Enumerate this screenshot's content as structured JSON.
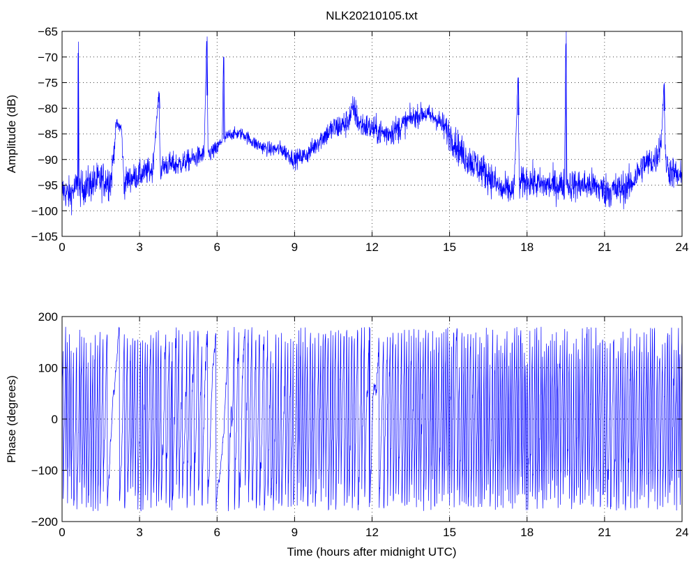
{
  "chart_data": [
    {
      "type": "line",
      "title": "NLK20210105.txt",
      "xlabel": "",
      "ylabel": "Amplitude (dB)",
      "xlim": [
        0,
        24
      ],
      "ylim": [
        -105,
        -65
      ],
      "xticks": [
        0,
        3,
        6,
        9,
        12,
        15,
        18,
        21,
        24
      ],
      "yticks": [
        -105,
        -100,
        -95,
        -90,
        -85,
        -80,
        -75,
        -70,
        -65
      ],
      "grid": true,
      "line_color": "#0000ff",
      "x": [
        0,
        0.3,
        0.6,
        0.62,
        0.65,
        1.0,
        1.5,
        1.9,
        2.05,
        2.1,
        2.3,
        2.4,
        2.5,
        3.0,
        3.5,
        3.75,
        3.8,
        4.0,
        4.5,
        5.0,
        5.5,
        5.6,
        5.65,
        6.0,
        6.2,
        6.25,
        6.3,
        6.5,
        7.0,
        7.5,
        8.0,
        8.5,
        9.0,
        9.5,
        10.0,
        10.5,
        11.0,
        11.3,
        11.5,
        12.0,
        12.5,
        13.0,
        13.5,
        14.0,
        14.5,
        15.0,
        15.5,
        16.0,
        16.5,
        17.0,
        17.5,
        17.65,
        17.7,
        18.0,
        18.5,
        19.0,
        19.45,
        19.5,
        19.55,
        20.0,
        20.5,
        21.0,
        21.5,
        22.0,
        22.5,
        23.0,
        23.2,
        23.3,
        23.35,
        23.5,
        24.0
      ],
      "y": [
        -96,
        -97,
        -95,
        -67,
        -96,
        -95,
        -94,
        -94,
        -86,
        -83,
        -84,
        -95,
        -94,
        -93,
        -92,
        -77,
        -92,
        -91,
        -91,
        -90,
        -89,
        -66,
        -89,
        -88,
        -86,
        -70,
        -86,
        -85,
        -85,
        -87,
        -88,
        -88,
        -90,
        -89,
        -86,
        -84,
        -83,
        -80,
        -83,
        -84,
        -85,
        -84,
        -82,
        -81,
        -82,
        -85,
        -89,
        -91,
        -93,
        -96,
        -96,
        -74,
        -95,
        -94,
        -95,
        -95,
        -95,
        -65,
        -95,
        -95,
        -95,
        -96,
        -96,
        -95,
        -91,
        -90,
        -86,
        -75,
        -90,
        -92,
        -94
      ],
      "noise_sigma": [
        1.6,
        1.7,
        1.6,
        0,
        1.6,
        1.8,
        1.8,
        2.0,
        0.8,
        0.6,
        0.8,
        1.4,
        1.3,
        1.3,
        1.3,
        0,
        1.3,
        1.2,
        1.2,
        1.0,
        1.0,
        0,
        1.0,
        0.8,
        0.7,
        0,
        0.7,
        0.6,
        0.6,
        0.7,
        0.7,
        0.8,
        0.9,
        0.9,
        1.1,
        1.3,
        1.4,
        1.5,
        1.4,
        1.3,
        1.4,
        1.4,
        1.1,
        1.0,
        1.1,
        1.6,
        1.7,
        1.7,
        1.7,
        1.6,
        1.5,
        0,
        1.6,
        1.6,
        1.6,
        1.6,
        1.6,
        0,
        1.6,
        1.6,
        1.6,
        1.7,
        1.8,
        1.6,
        1.5,
        1.5,
        1.5,
        0,
        1.5,
        1.6,
        1.7
      ]
    },
    {
      "type": "line",
      "title": "",
      "xlabel": "Time (hours after midnight UTC)",
      "ylabel": "Phase (degrees)",
      "xlim": [
        0,
        24
      ],
      "ylim": [
        -200,
        200
      ],
      "xticks": [
        0,
        3,
        6,
        9,
        12,
        15,
        18,
        21,
        24
      ],
      "yticks": [
        -200,
        -100,
        0,
        100,
        200
      ],
      "grid": true,
      "line_color": "#0000ff",
      "wrap_range": [
        -180,
        180
      ],
      "x": [
        0,
        0.5,
        1.0,
        1.5,
        1.9,
        2.0,
        2.3,
        2.5,
        3.0,
        3.5,
        4.0,
        4.5,
        5.0,
        5.5,
        6.0,
        6.2,
        6.5,
        7.0,
        7.5,
        8.0,
        8.5,
        9.0,
        9.5,
        10.0,
        10.5,
        11.0,
        11.5,
        12.0,
        12.2,
        12.5,
        13.0,
        13.5,
        14.0,
        14.5,
        15.0,
        15.5,
        16.0,
        16.5,
        17.0,
        17.5,
        18.0,
        18.5,
        19.0,
        19.5,
        20.0,
        20.5,
        21.0,
        21.5,
        22.0,
        22.5,
        23.0,
        23.5,
        24.0
      ],
      "phase_rate": [
        9,
        9,
        9,
        8,
        2,
        1,
        3,
        8,
        8,
        8,
        6,
        6,
        5,
        4,
        1,
        1,
        4,
        4,
        6,
        6,
        7,
        9,
        9,
        8,
        8,
        8,
        7,
        2,
        2,
        7,
        8,
        9,
        9,
        9,
        10,
        10,
        10,
        10,
        10,
        9,
        10,
        10,
        10,
        10,
        10,
        9,
        8,
        8,
        9,
        9,
        9,
        10,
        10
      ],
      "phase_jitter": [
        60,
        60,
        60,
        60,
        20,
        15,
        20,
        60,
        60,
        60,
        55,
        55,
        55,
        55,
        10,
        10,
        50,
        50,
        50,
        50,
        55,
        60,
        60,
        60,
        60,
        60,
        60,
        30,
        30,
        60,
        60,
        60,
        60,
        60,
        60,
        60,
        60,
        60,
        60,
        60,
        60,
        60,
        60,
        60,
        60,
        60,
        60,
        60,
        60,
        60,
        60,
        60,
        60
      ]
    }
  ]
}
